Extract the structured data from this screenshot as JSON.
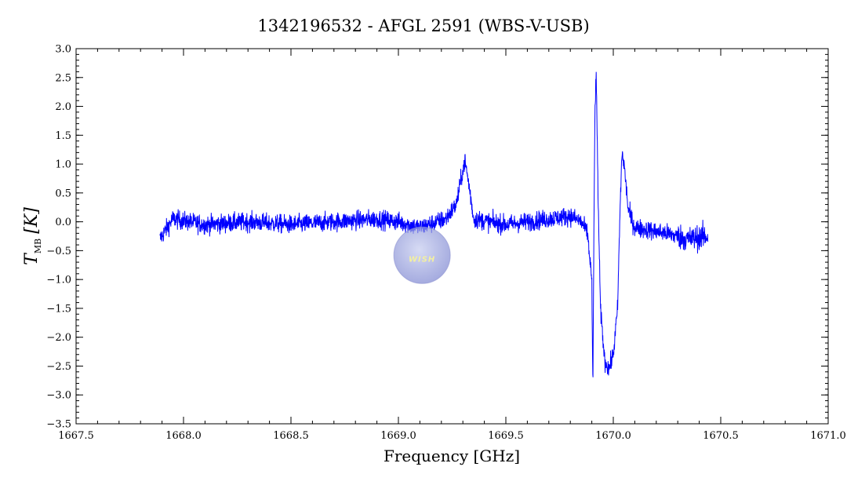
{
  "chart_data": {
    "type": "line",
    "title": "1342196532 - AFGL 2591 (WBS-V-USB)",
    "xlabel": "Frequency [GHz]",
    "ylabel_main": "T",
    "ylabel_sub": "MB",
    "ylabel_unit": "[K]",
    "xlim": [
      1667.5,
      1671.0
    ],
    "ylim": [
      -3.5,
      3.0
    ],
    "x_ticks": [
      1667.5,
      1668.0,
      1668.5,
      1669.0,
      1669.5,
      1670.0,
      1670.5,
      1671.0
    ],
    "x_tick_labels": [
      "1667.5",
      "1668.0",
      "1668.5",
      "1669.0",
      "1669.5",
      "1670.0",
      "1670.5",
      "1671.0"
    ],
    "y_ticks": [
      3.0,
      2.5,
      2.0,
      1.5,
      1.0,
      0.5,
      0.0,
      -0.5,
      -1.0,
      -1.5,
      -2.0,
      -2.5,
      -3.0,
      -3.5
    ],
    "y_tick_labels": [
      "3.0",
      "2.5",
      "2.0",
      "1.5",
      "1.0",
      "0.5",
      "0.0",
      "−0.5",
      "−1.0",
      "−1.5",
      "−2.0",
      "−2.5",
      "−3.0",
      "−3.5"
    ],
    "grid": false,
    "series": [
      {
        "color": "#0000ff",
        "x_range": [
          1667.89,
          1670.44
        ],
        "baseline": -0.02,
        "noise_rms": 0.16,
        "points": [
          [
            1667.89,
            -0.3
          ],
          [
            1667.95,
            0.05
          ],
          [
            1668.1,
            -0.05
          ],
          [
            1668.3,
            0.0
          ],
          [
            1668.5,
            -0.05
          ],
          [
            1668.7,
            0.0
          ],
          [
            1668.9,
            0.05
          ],
          [
            1669.0,
            0.0
          ],
          [
            1669.1,
            -0.1
          ],
          [
            1669.22,
            0.05
          ],
          [
            1669.27,
            0.3
          ],
          [
            1669.3,
            0.9
          ],
          [
            1669.31,
            1.05
          ],
          [
            1669.33,
            0.6
          ],
          [
            1669.35,
            0.05
          ],
          [
            1669.5,
            -0.05
          ],
          [
            1669.7,
            0.05
          ],
          [
            1669.8,
            0.1
          ],
          [
            1669.85,
            0.0
          ],
          [
            1669.88,
            -0.2
          ],
          [
            1669.9,
            -1.0
          ],
          [
            1669.905,
            -3.0
          ],
          [
            1669.91,
            0.0
          ],
          [
            1669.915,
            2.0
          ],
          [
            1669.92,
            2.55
          ],
          [
            1669.925,
            1.5
          ],
          [
            1669.93,
            0.3
          ],
          [
            1669.94,
            -1.5
          ],
          [
            1669.96,
            -2.4
          ],
          [
            1669.98,
            -2.55
          ],
          [
            1670.0,
            -2.3
          ],
          [
            1670.02,
            -1.5
          ],
          [
            1670.03,
            0.0
          ],
          [
            1670.04,
            1.2
          ],
          [
            1670.05,
            1.0
          ],
          [
            1670.07,
            0.2
          ],
          [
            1670.1,
            -0.1
          ],
          [
            1670.25,
            -0.2
          ],
          [
            1670.35,
            -0.3
          ],
          [
            1670.44,
            -0.25
          ]
        ]
      }
    ],
    "logo": {
      "text": "WISH",
      "x": 1669.11,
      "y": -0.58
    }
  }
}
